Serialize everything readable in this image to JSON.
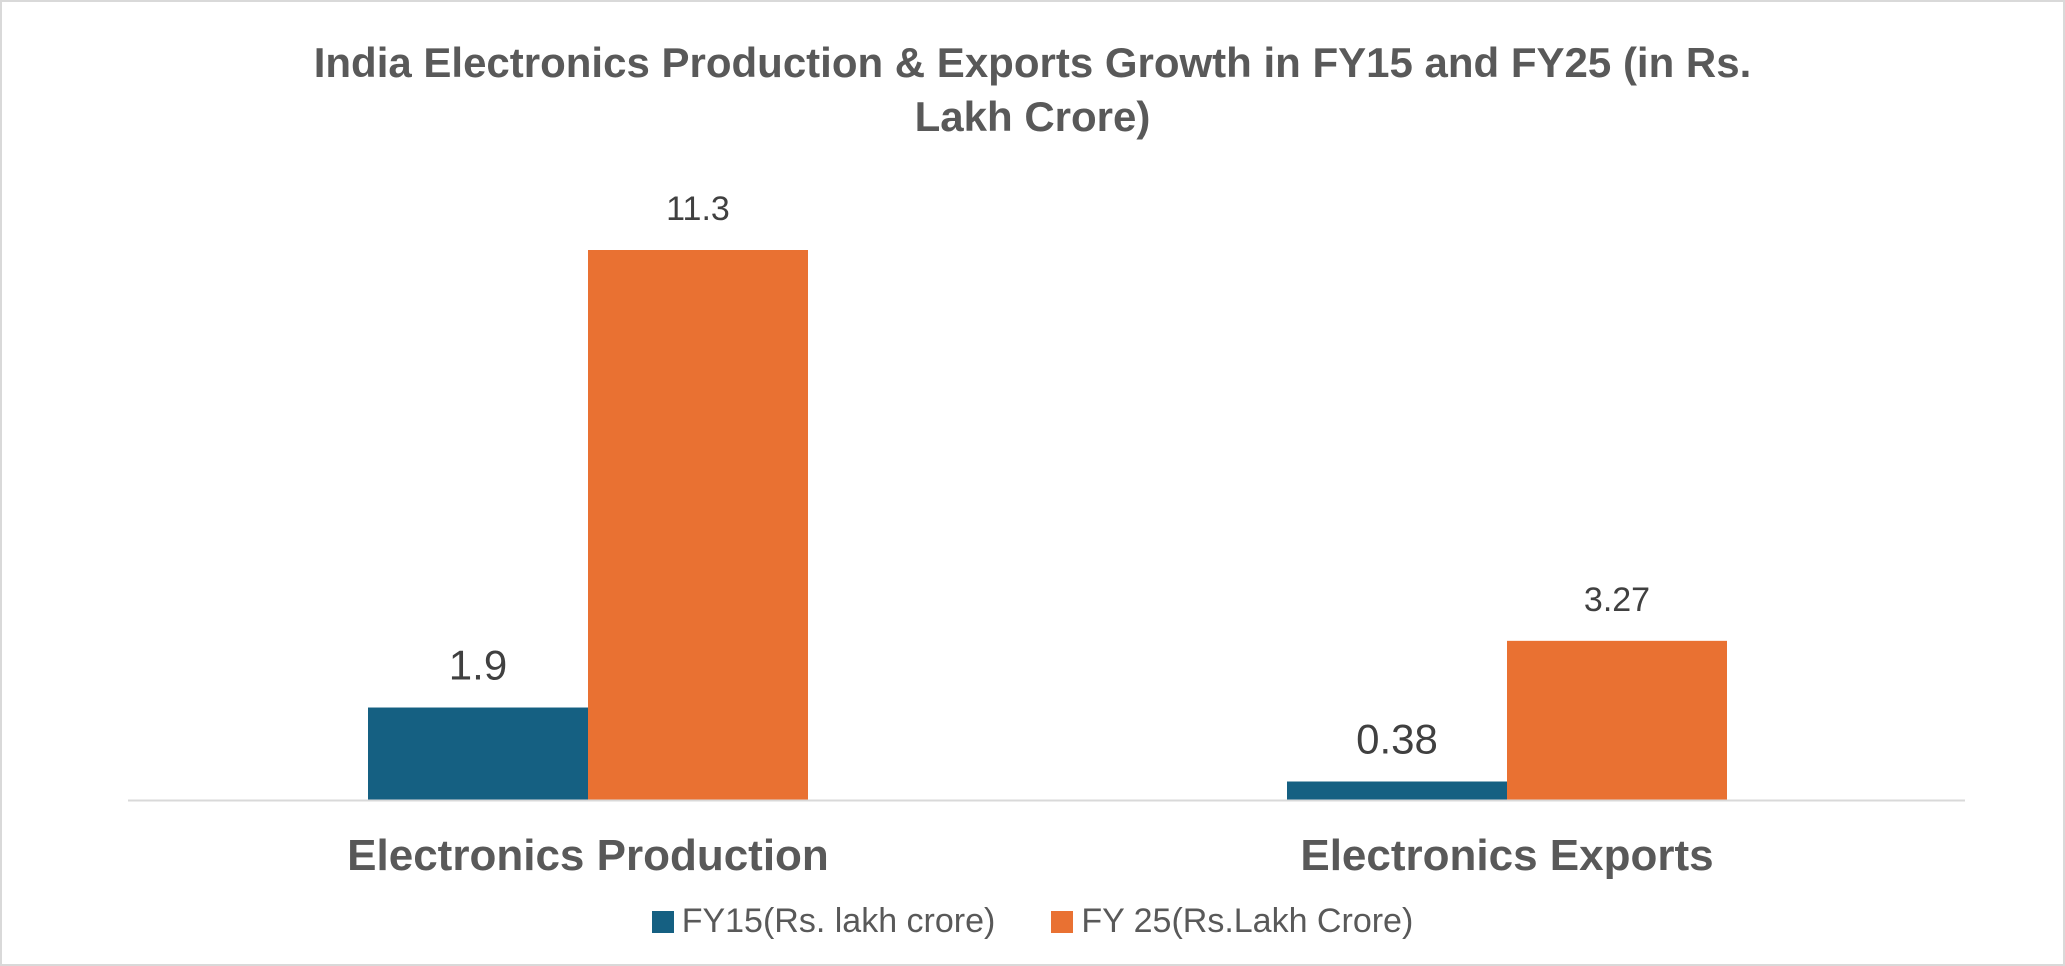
{
  "chart_data": {
    "type": "bar",
    "title_lines": [
      "India Electronics Production & Exports Growth in FY15 and FY25 (in Rs.",
      "Lakh Crore)"
    ],
    "categories": [
      "Electronics Production",
      "Electronics Exports"
    ],
    "series": [
      {
        "name": "FY15(Rs. lakh crore)",
        "values": [
          1.9,
          0.38
        ],
        "labels": [
          "1.9",
          "0.38"
        ],
        "color": "#156082"
      },
      {
        "name": "FY 25(Rs.Lakh Crore)",
        "values": [
          11.3,
          3.27
        ],
        "labels": [
          "11.3",
          "3.27"
        ],
        "color": "#E97132"
      }
    ],
    "ylim": [
      0,
      11.3
    ],
    "grid": false,
    "legend_position": "bottom",
    "axis_color": "#d9d9d9"
  }
}
